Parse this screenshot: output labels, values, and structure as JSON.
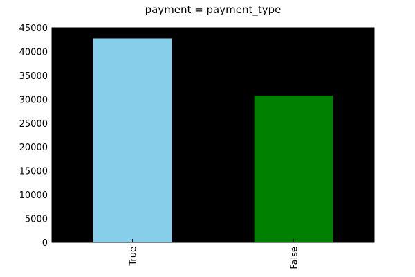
{
  "chart_data": {
    "type": "bar",
    "title": "payment = payment_type",
    "xlabel": "",
    "ylabel": "",
    "categories": [
      "True",
      "False"
    ],
    "values": [
      42800,
      30800
    ],
    "colors": [
      "#87ceeb",
      "#008000"
    ],
    "plot_background": "#000000",
    "ylim": [
      0,
      45000
    ],
    "yticks": [
      0,
      5000,
      10000,
      15000,
      20000,
      25000,
      30000,
      35000,
      40000,
      45000
    ],
    "ytick_labels": [
      "0",
      "5000",
      "10000",
      "15000",
      "20000",
      "25000",
      "30000",
      "35000",
      "40000",
      "45000"
    ],
    "grid": false,
    "legend": "none",
    "x_tick_rotation": "vertical"
  }
}
